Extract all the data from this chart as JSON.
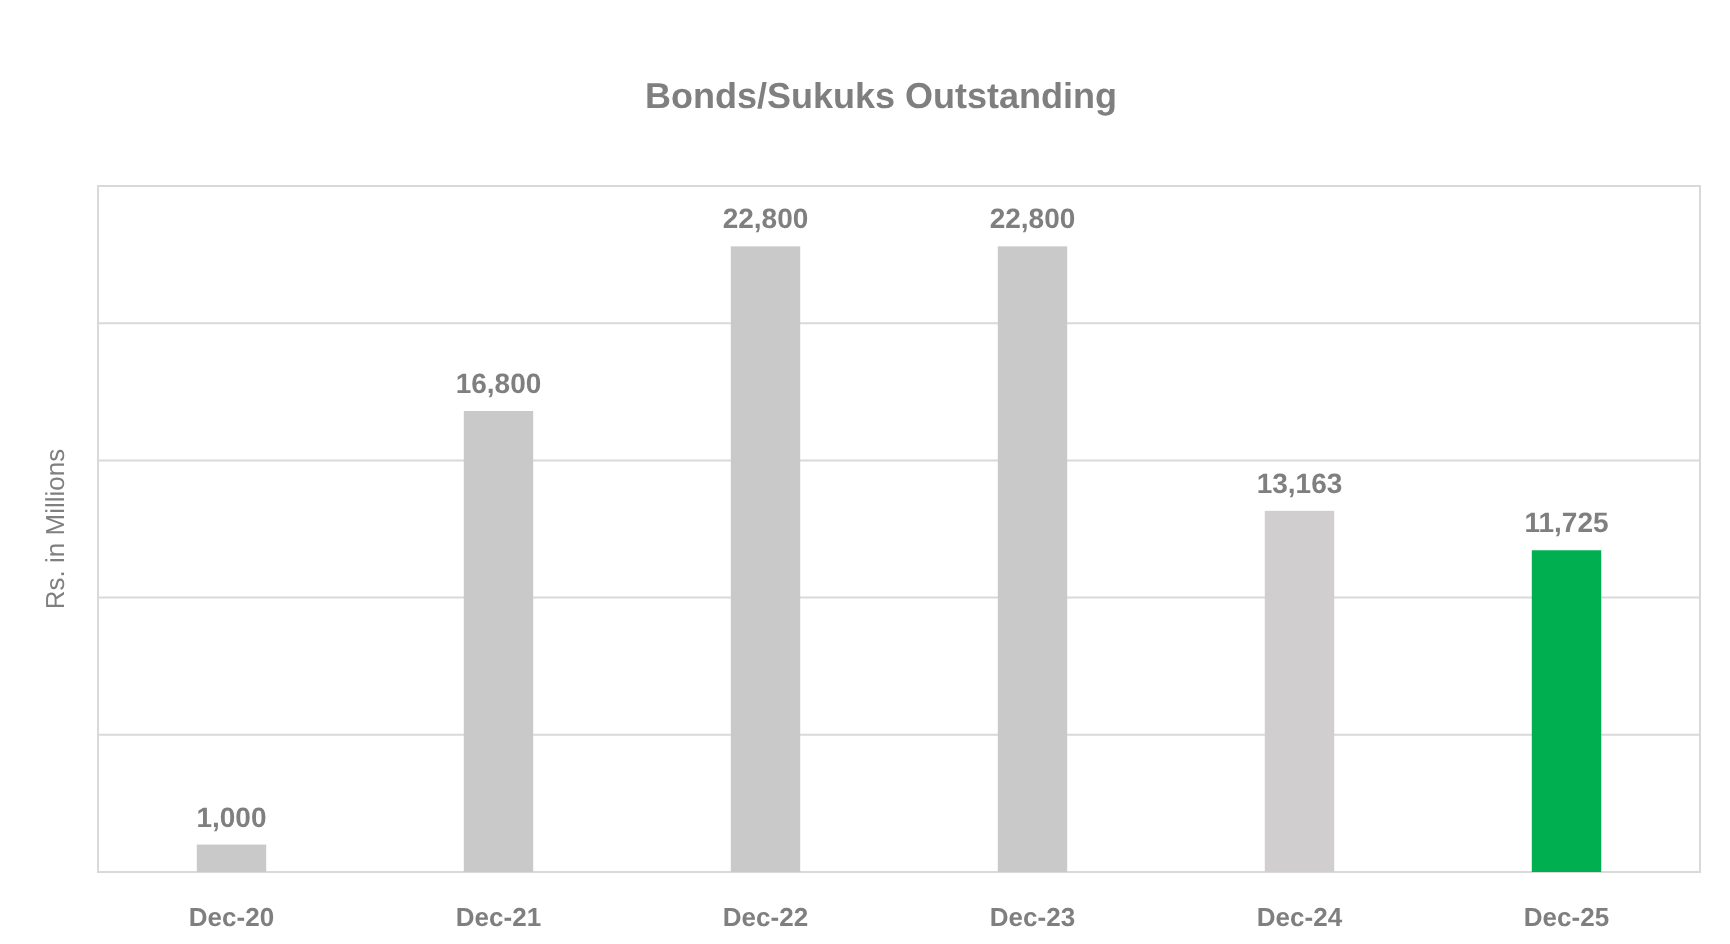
{
  "chart_data": {
    "type": "bar",
    "title": "Bonds/Sukuks Outstanding",
    "ylabel": "Rs. in Millions",
    "categories": [
      "Dec-20",
      "Dec-21",
      "Dec-22",
      "Dec-23",
      "Dec-24",
      "Dec-25"
    ],
    "values": [
      1000,
      16800,
      22800,
      22800,
      13163,
      11725
    ],
    "colors": [
      "#c9c9c9",
      "#c9c9c9",
      "#c9c9c9",
      "#c9c9c9",
      "#d0cece",
      "#00b050"
    ],
    "value_labels": [
      "1,000",
      "16,800",
      "22,800",
      "22,800",
      "13,163",
      "11,725"
    ],
    "ylim": [
      0,
      25000
    ],
    "yticks": [
      {
        "value": 0,
        "label": null
      },
      {
        "value": 5000,
        "label": null
      },
      {
        "value": 10000,
        "label": null
      },
      {
        "value": 15000,
        "label": null
      },
      {
        "value": 20000,
        "label": null
      },
      {
        "value": 25000,
        "label": null
      }
    ],
    "grid": "y",
    "tick_labels": "x"
  }
}
